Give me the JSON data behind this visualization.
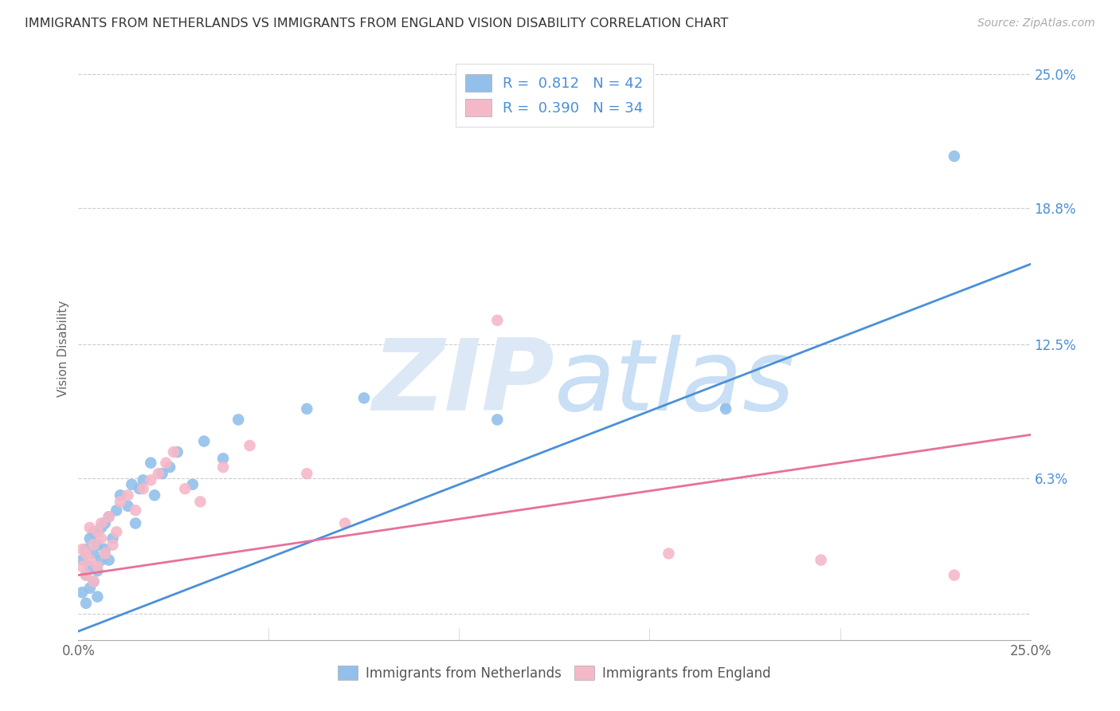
{
  "title": "IMMIGRANTS FROM NETHERLANDS VS IMMIGRANTS FROM ENGLAND VISION DISABILITY CORRELATION CHART",
  "source": "Source: ZipAtlas.com",
  "ylabel": "Vision Disability",
  "x_min": 0.0,
  "x_max": 0.25,
  "y_min": -0.012,
  "y_max": 0.258,
  "y_ticks": [
    0.0,
    0.063,
    0.125,
    0.188,
    0.25
  ],
  "y_tick_labels": [
    "",
    "6.3%",
    "12.5%",
    "18.8%",
    "25.0%"
  ],
  "R_netherlands": 0.812,
  "N_netherlands": 42,
  "R_england": 0.39,
  "N_england": 34,
  "color_netherlands": "#92c0ea",
  "color_england": "#f5b8c8",
  "trendline_netherlands_color": "#4a90d9",
  "trendline_england_color": "#e8709a",
  "watermark_color": "#dce8f5",
  "background_color": "#ffffff",
  "nl_trend_x0": 0.0,
  "nl_trend_y0": -0.008,
  "nl_trend_x1": 0.25,
  "nl_trend_y1": 0.162,
  "en_trend_x0": 0.0,
  "en_trend_y0": 0.018,
  "en_trend_x1": 0.25,
  "en_trend_y1": 0.083,
  "scatter_netherlands_x": [
    0.001,
    0.001,
    0.002,
    0.002,
    0.002,
    0.003,
    0.003,
    0.003,
    0.004,
    0.004,
    0.004,
    0.005,
    0.005,
    0.005,
    0.006,
    0.006,
    0.007,
    0.007,
    0.008,
    0.008,
    0.009,
    0.01,
    0.011,
    0.013,
    0.014,
    0.015,
    0.016,
    0.017,
    0.019,
    0.02,
    0.022,
    0.024,
    0.026,
    0.03,
    0.033,
    0.038,
    0.042,
    0.06,
    0.075,
    0.11,
    0.17,
    0.23
  ],
  "scatter_netherlands_y": [
    0.025,
    0.01,
    0.03,
    0.018,
    0.005,
    0.022,
    0.035,
    0.012,
    0.028,
    0.015,
    0.038,
    0.02,
    0.032,
    0.008,
    0.025,
    0.04,
    0.03,
    0.042,
    0.025,
    0.045,
    0.035,
    0.048,
    0.055,
    0.05,
    0.06,
    0.042,
    0.058,
    0.062,
    0.07,
    0.055,
    0.065,
    0.068,
    0.075,
    0.06,
    0.08,
    0.072,
    0.09,
    0.095,
    0.1,
    0.09,
    0.095,
    0.212
  ],
  "scatter_england_x": [
    0.001,
    0.001,
    0.002,
    0.002,
    0.003,
    0.003,
    0.004,
    0.004,
    0.005,
    0.005,
    0.006,
    0.006,
    0.007,
    0.008,
    0.009,
    0.01,
    0.011,
    0.013,
    0.015,
    0.017,
    0.019,
    0.021,
    0.023,
    0.025,
    0.028,
    0.032,
    0.038,
    0.045,
    0.06,
    0.07,
    0.11,
    0.155,
    0.195,
    0.23
  ],
  "scatter_england_y": [
    0.03,
    0.022,
    0.028,
    0.018,
    0.04,
    0.025,
    0.032,
    0.015,
    0.038,
    0.022,
    0.035,
    0.042,
    0.028,
    0.045,
    0.032,
    0.038,
    0.052,
    0.055,
    0.048,
    0.058,
    0.062,
    0.065,
    0.07,
    0.075,
    0.058,
    0.052,
    0.068,
    0.078,
    0.065,
    0.042,
    0.136,
    0.028,
    0.025,
    0.018
  ]
}
